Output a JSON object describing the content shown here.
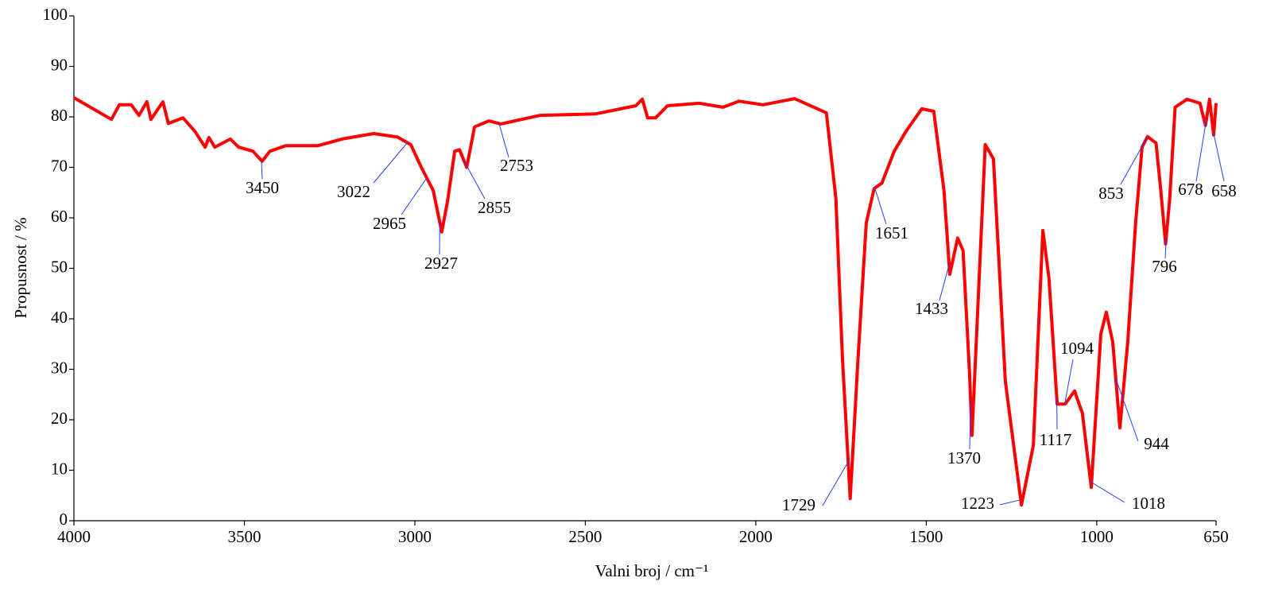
{
  "chart_data": {
    "type": "line",
    "xlabel": "Valni broj / cm⁻¹",
    "ylabel": "Propusnost / %",
    "xlim": [
      4000,
      650
    ],
    "ylim": [
      0,
      100
    ],
    "xticks": [
      4000,
      3500,
      3000,
      2500,
      2000,
      1500,
      1000,
      650
    ],
    "yticks": [
      0,
      10,
      20,
      30,
      40,
      50,
      60,
      70,
      80,
      90,
      100
    ],
    "series": [
      {
        "color": "#ff0000",
        "x": [
          4000,
          3890,
          3867,
          3832,
          3809,
          3786,
          3774,
          3739,
          3723,
          3680,
          3646,
          3615,
          3604,
          3587,
          3541,
          3517,
          3475,
          3448,
          3425,
          3378,
          3284,
          3214,
          3121,
          3051,
          3012,
          2981,
          2946,
          2921,
          2904,
          2883,
          2869,
          2848,
          2825,
          2783,
          2748,
          2632,
          2469,
          2352,
          2333,
          2317,
          2294,
          2259,
          2166,
          2096,
          2049,
          1979,
          1886,
          1793,
          1765,
          1746,
          1723,
          1700,
          1676,
          1653,
          1630,
          1594,
          1559,
          1513,
          1478,
          1448,
          1431,
          1408,
          1392,
          1373,
          1366,
          1350,
          1327,
          1303,
          1268,
          1221,
          1186,
          1158,
          1140,
          1116,
          1093,
          1065,
          1042,
          1016,
          988,
          972,
          953,
          932,
          909,
          886,
          867,
          851,
          826,
          812,
          798,
          786,
          770,
          735,
          697,
          681,
          669,
          657,
          650
        ],
        "values": [
          83.8,
          79.5,
          82.4,
          82.4,
          80.3,
          83,
          79.5,
          83,
          78.7,
          79.8,
          77.2,
          74,
          75.9,
          74,
          75.6,
          74,
          73.2,
          71.2,
          73.2,
          74.3,
          74.3,
          75.6,
          76.7,
          76,
          74.5,
          70,
          65.4,
          57.2,
          63.3,
          73.2,
          73.5,
          70,
          78,
          79.2,
          78.6,
          80.3,
          80.6,
          82.2,
          83.5,
          79.8,
          79.8,
          82.2,
          82.7,
          81.9,
          83.1,
          82.4,
          83.6,
          80.8,
          63.8,
          32.3,
          4.4,
          32.3,
          59,
          65.8,
          66.9,
          73.2,
          77.2,
          81.6,
          81.1,
          65.4,
          48.8,
          56,
          53.5,
          29.1,
          16.9,
          40.2,
          74.5,
          71.7,
          27.6,
          3.1,
          14.9,
          57.5,
          48,
          23.1,
          23.1,
          25.7,
          21.3,
          6.6,
          37,
          41.3,
          35.4,
          18.4,
          35.4,
          59,
          74,
          76.1,
          74.8,
          65.4,
          54.8,
          63.8,
          81.9,
          83.5,
          82.7,
          78.3,
          83.5,
          76.4,
          82.7
        ]
      }
    ],
    "annotations": [
      3450,
      3022,
      2965,
      2927,
      2855,
      2753,
      1651,
      1433,
      1729,
      1370,
      1223,
      1117,
      1094,
      1018,
      944,
      853,
      796,
      678,
      658
    ]
  }
}
